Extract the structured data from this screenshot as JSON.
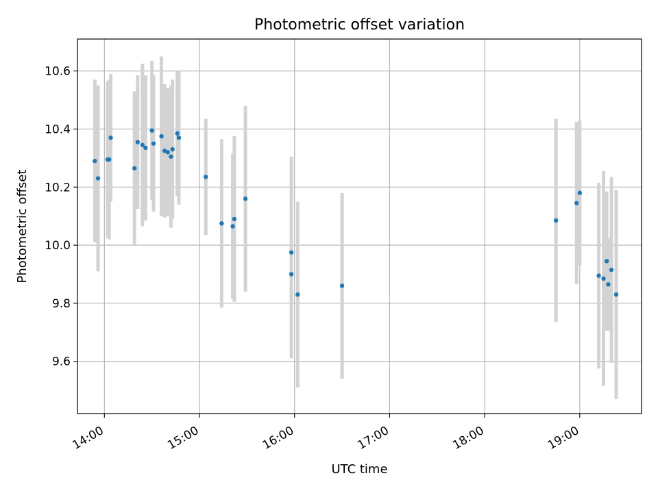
{
  "chart_data": {
    "type": "scatter",
    "title": "Photometric offset variation",
    "xlabel": "UTC time",
    "ylabel": "Photometric offset",
    "x_format": "HH:MM",
    "xlim": [
      "13:43",
      "19:39"
    ],
    "ylim": [
      9.42,
      10.71
    ],
    "x_ticks": [
      "14:00",
      "15:00",
      "16:00",
      "17:00",
      "18:00",
      "19:00"
    ],
    "y_ticks": [
      "9.6",
      "9.8",
      "10.0",
      "10.2",
      "10.4",
      "10.6"
    ],
    "grid": true,
    "colors": {
      "points": "#1f77b4",
      "errorbars": "#d3d3d3",
      "grid": "#b0b0b0"
    },
    "series": [
      {
        "points": [
          {
            "x": "13:54",
            "y": 10.29,
            "err": 0.28
          },
          {
            "x": "13:56",
            "y": 10.23,
            "err": 0.32
          },
          {
            "x": "14:02",
            "y": 10.295,
            "err": 0.27
          },
          {
            "x": "14:03",
            "y": 10.295,
            "err": 0.275
          },
          {
            "x": "14:04",
            "y": 10.37,
            "err": 0.22
          },
          {
            "x": "14:19",
            "y": 10.265,
            "err": 0.265
          },
          {
            "x": "14:21",
            "y": 10.355,
            "err": 0.23
          },
          {
            "x": "14:24",
            "y": 10.345,
            "err": 0.28
          },
          {
            "x": "14:26",
            "y": 10.335,
            "err": 0.25
          },
          {
            "x": "14:30",
            "y": 10.395,
            "err": 0.24
          },
          {
            "x": "14:31",
            "y": 10.35,
            "err": 0.235
          },
          {
            "x": "14:36",
            "y": 10.375,
            "err": 0.275
          },
          {
            "x": "14:38",
            "y": 10.325,
            "err": 0.23
          },
          {
            "x": "14:40",
            "y": 10.32,
            "err": 0.22
          },
          {
            "x": "14:42",
            "y": 10.305,
            "err": 0.245
          },
          {
            "x": "14:43",
            "y": 10.33,
            "err": 0.24
          },
          {
            "x": "14:46",
            "y": 10.385,
            "err": 0.215
          },
          {
            "x": "14:47",
            "y": 10.37,
            "err": 0.23
          },
          {
            "x": "15:04",
            "y": 10.235,
            "err": 0.2
          },
          {
            "x": "15:14",
            "y": 10.075,
            "err": 0.29
          },
          {
            "x": "15:21",
            "y": 10.065,
            "err": 0.25
          },
          {
            "x": "15:22",
            "y": 10.09,
            "err": 0.285
          },
          {
            "x": "15:29",
            "y": 10.16,
            "err": 0.32
          },
          {
            "x": "15:58",
            "y": 9.9,
            "err": 0.29
          },
          {
            "x": "15:58",
            "y": 9.975,
            "err": 0.33
          },
          {
            "x": "16:02",
            "y": 9.83,
            "err": 0.32
          },
          {
            "x": "16:30",
            "y": 9.86,
            "err": 0.32
          },
          {
            "x": "18:45",
            "y": 10.085,
            "err": 0.35
          },
          {
            "x": "18:58",
            "y": 10.145,
            "err": 0.28
          },
          {
            "x": "19:00",
            "y": 10.18,
            "err": 0.25
          },
          {
            "x": "19:12",
            "y": 9.895,
            "err": 0.32
          },
          {
            "x": "19:15",
            "y": 9.885,
            "err": 0.37
          },
          {
            "x": "19:17",
            "y": 9.945,
            "err": 0.24
          },
          {
            "x": "19:18",
            "y": 9.865,
            "err": 0.16
          },
          {
            "x": "19:20",
            "y": 9.915,
            "err": 0.32
          },
          {
            "x": "19:23",
            "y": 9.83,
            "err": 0.36
          }
        ]
      }
    ]
  }
}
